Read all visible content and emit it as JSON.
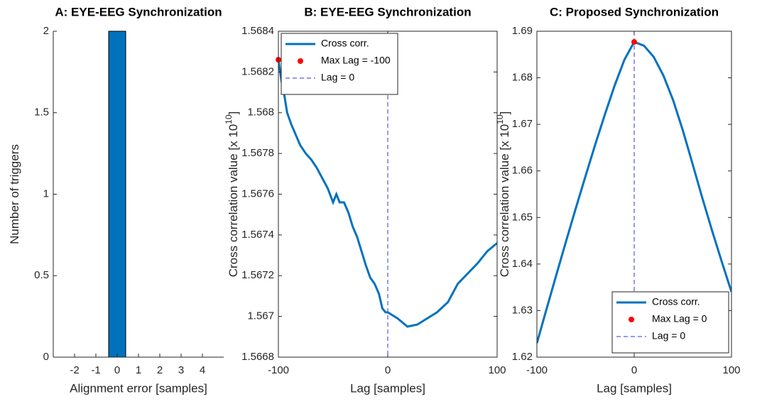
{
  "chart_data": [
    {
      "type": "histogram",
      "title": "A: EYE-EEG Synchronization",
      "xlabel": "Alignment error [samples]",
      "ylabel": {
        "text": "Number of triggers"
      },
      "bins": [
        -0.4,
        0.4
      ],
      "values": [
        2
      ],
      "color": "#0072BD",
      "edgecolor": "#000000",
      "xlim": [
        -3,
        5
      ],
      "xticks": [
        -2,
        -1,
        0,
        1,
        2,
        3,
        4
      ],
      "ylim": [
        0,
        2
      ],
      "yticks": [
        0,
        0.5,
        1,
        1.5,
        2
      ],
      "box": false
    },
    {
      "type": "line",
      "title": "B: EYE-EEG Synchronization",
      "xlabel": "Lag [samples]",
      "ylabel": {
        "text": "Cross correlation value [x 10",
        "superscript": "10",
        "suffix": "]"
      },
      "xlim": [
        -100,
        100
      ],
      "xticks": [
        -100,
        0,
        100
      ],
      "ylim": [
        1.5668,
        1.5684
      ],
      "yticks": [
        1.5668,
        1.567,
        1.5672,
        1.5674,
        1.5676,
        1.5678,
        1.568,
        1.5682,
        1.5684
      ],
      "box": true,
      "legend": "upper left",
      "series": [
        {
          "name": "Cross corr.",
          "kind": "line",
          "color": "#0072BD",
          "x": [
            -100,
            -97,
            -95,
            -92,
            -88,
            -84,
            -80,
            -75,
            -70,
            -65,
            -60,
            -55,
            -50,
            -47,
            -44,
            -40,
            -36,
            -32,
            -28,
            -24,
            -20,
            -16,
            -12,
            -8,
            -5,
            -2,
            0,
            9,
            18,
            27,
            36,
            45,
            55,
            64,
            73,
            82,
            91,
            100
          ],
          "values": [
            1.56826,
            1.56815,
            1.5681,
            1.568,
            1.56794,
            1.56789,
            1.56784,
            1.5678,
            1.56777,
            1.56773,
            1.56768,
            1.56763,
            1.56756,
            1.5676,
            1.56756,
            1.56756,
            1.56751,
            1.56744,
            1.56739,
            1.56732,
            1.56725,
            1.56719,
            1.56716,
            1.56711,
            1.56704,
            1.56702,
            1.56702,
            1.56699,
            1.56695,
            1.56696,
            1.56699,
            1.56702,
            1.56707,
            1.56716,
            1.56721,
            1.56726,
            1.56732,
            1.56736
          ]
        },
        {
          "name": "Max Lag = -100",
          "kind": "scatter",
          "color": "#FF0000",
          "x": [
            -100
          ],
          "values": [
            1.56826
          ]
        },
        {
          "name": "Lag = 0",
          "kind": "vline",
          "color": "#3333DD",
          "x": [
            0
          ]
        }
      ]
    },
    {
      "type": "line",
      "title": "C: Proposed Synchronization",
      "xlabel": "Lag [samples]",
      "ylabel": {
        "text": "Cross correlation value [x 10",
        "superscript": "10",
        "suffix": "]"
      },
      "xlim": [
        -100,
        100
      ],
      "xticks": [
        -100,
        0,
        100
      ],
      "ylim": [
        1.62,
        1.69
      ],
      "yticks": [
        1.62,
        1.63,
        1.64,
        1.65,
        1.66,
        1.67,
        1.68,
        1.69
      ],
      "box": true,
      "legend": "lower right",
      "series": [
        {
          "name": "Cross corr.",
          "kind": "line",
          "color": "#0072BD",
          "x": [
            -100,
            -90,
            -80,
            -70,
            -60,
            -50,
            -40,
            -30,
            -20,
            -10,
            0,
            10,
            20,
            30,
            40,
            50,
            60,
            70,
            80,
            90,
            100
          ],
          "values": [
            1.623,
            1.6304,
            1.6377,
            1.6449,
            1.652,
            1.6589,
            1.6657,
            1.6722,
            1.6784,
            1.6839,
            1.6877,
            1.6869,
            1.6845,
            1.6805,
            1.6752,
            1.6687,
            1.6615,
            1.6542,
            1.6472,
            1.6405,
            1.634
          ]
        },
        {
          "name": "Max Lag = 0",
          "kind": "scatter",
          "color": "#FF0000",
          "x": [
            0
          ],
          "values": [
            1.6877
          ]
        },
        {
          "name": "Lag = 0",
          "kind": "vline",
          "color": "#3333DD",
          "x": [
            0
          ]
        }
      ]
    }
  ]
}
